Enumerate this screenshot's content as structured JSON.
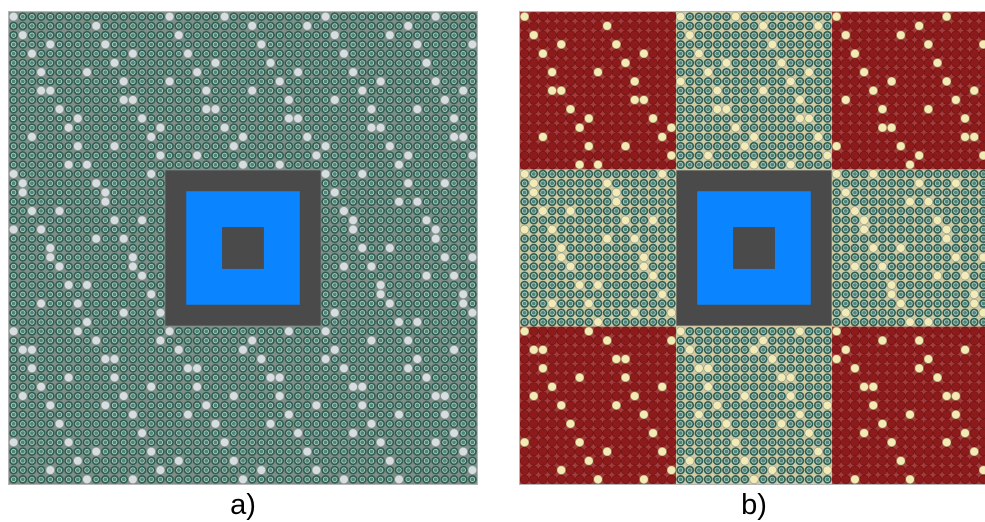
{
  "panels": [
    {
      "id": "a",
      "caption": "a)",
      "colors": {
        "background": "#7f8f87",
        "pin_outer": "#2f5e52",
        "pin_ring": "#b9cfc9",
        "pin_inner": "#4d8576",
        "light_pin": "#d7dde0",
        "moderator_outer": "#4a4a4a",
        "moderator_middle": "#0a84ff",
        "moderator_inner": "#4a4a4a"
      },
      "uniform_fuel": true
    },
    {
      "id": "b",
      "caption": "b)",
      "colors": {
        "background_beige": "#cfc9a4",
        "background_red": "#a23b3b",
        "pin_red": "#8e1b1b",
        "pin_red_ring": "#6c1010",
        "pin_green_outer": "#2f5e52",
        "pin_green_ring": "#b9cfc9",
        "pin_green_inner": "#4d8576",
        "light_pin": "#f3eab5",
        "moderator_outer": "#4a4a4a",
        "moderator_middle": "#0a84ff",
        "moderator_inner": "#4a4a4a"
      },
      "uniform_fuel": false,
      "zone_layout": [
        [
          "red",
          "beige",
          "red"
        ],
        [
          "beige",
          "center",
          "beige"
        ],
        [
          "red",
          "beige",
          "red"
        ]
      ]
    }
  ]
}
